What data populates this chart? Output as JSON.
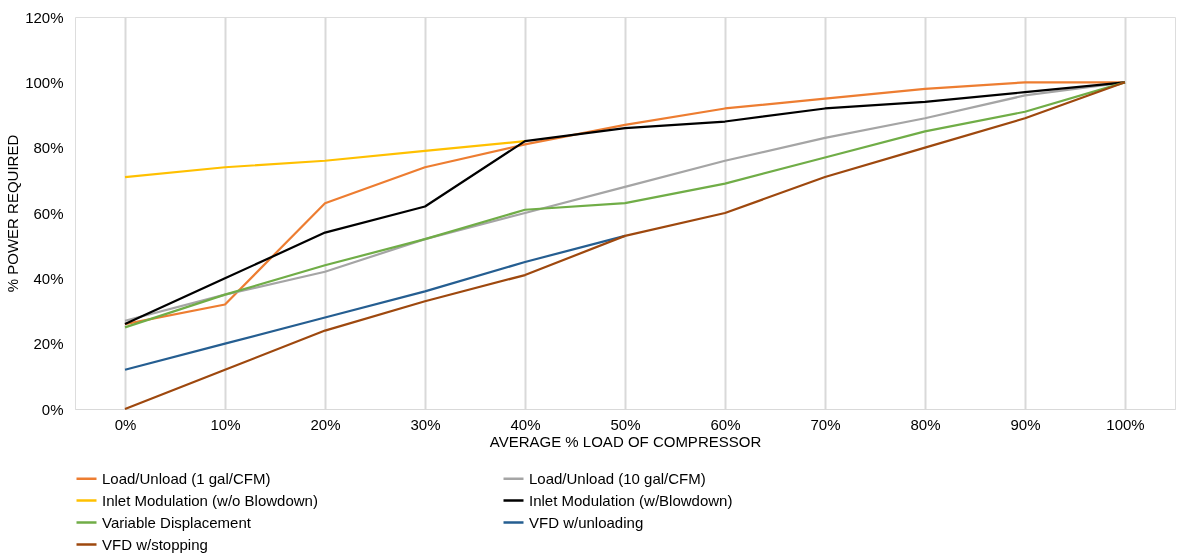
{
  "chart_data": {
    "type": "line",
    "xlabel": "AVERAGE % LOAD OF COMPRESSOR",
    "ylabel": "% POWER REQUIRED",
    "categories": [
      "0%",
      "10%",
      "20%",
      "30%",
      "40%",
      "50%",
      "60%",
      "70%",
      "80%",
      "90%",
      "100%"
    ],
    "series": [
      {
        "name": "Load/Unload (1 gal/CFM)",
        "color": "#ed7d31",
        "values": [
          26,
          32,
          63,
          74,
          81,
          87,
          92,
          95,
          98,
          100,
          100
        ]
      },
      {
        "name": "Load/Unload (10 gal/CFM)",
        "color": "#a5a5a5",
        "values": [
          27,
          35,
          42,
          52,
          60,
          68,
          76,
          83,
          89,
          96,
          100
        ]
      },
      {
        "name": "Inlet Modulation (w/o Blowdown)",
        "color": "#ffc000",
        "values": [
          71,
          74,
          76,
          79,
          82,
          null,
          null,
          null,
          null,
          null,
          null
        ]
      },
      {
        "name": "Inlet Modulation (w/Blowdown)",
        "color": "#000000",
        "values": [
          26,
          40,
          54,
          62,
          82,
          86,
          88,
          92,
          94,
          97,
          100
        ]
      },
      {
        "name": "Variable Displacement",
        "color": "#70ad47",
        "values": [
          25,
          35,
          44,
          52,
          61,
          63,
          69,
          77,
          85,
          91,
          100
        ]
      },
      {
        "name": "VFD w/unloading",
        "color": "#255e91",
        "values": [
          12,
          20,
          28,
          36,
          45,
          53,
          null,
          null,
          null,
          null,
          null
        ]
      },
      {
        "name": "VFD w/stopping",
        "color": "#9e480e",
        "values": [
          0,
          12,
          24,
          33,
          41,
          53,
          60,
          71,
          80,
          89,
          100
        ]
      }
    ],
    "ylim": [
      0,
      120
    ],
    "yticks": [
      {
        "value": 0,
        "label": "0%"
      },
      {
        "value": 20,
        "label": "20%"
      },
      {
        "value": 40,
        "label": "40%"
      },
      {
        "value": 60,
        "label": "60%"
      },
      {
        "value": 80,
        "label": "80%"
      },
      {
        "value": 100,
        "label": "100%"
      },
      {
        "value": 120,
        "label": "120%"
      }
    ],
    "grid": "x",
    "legend": "bottom",
    "marker": "none",
    "line_style": "solid"
  }
}
